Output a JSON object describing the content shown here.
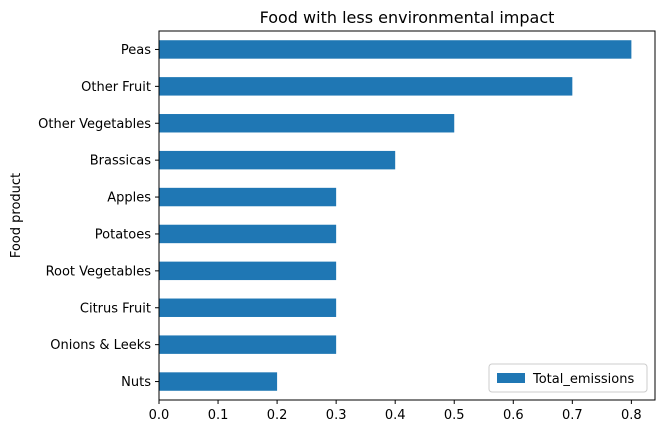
{
  "chart_data": {
    "type": "bar",
    "orientation": "horizontal",
    "title": "Food with less environmental impact",
    "xlabel": "",
    "ylabel": "Food product",
    "categories": [
      "Peas",
      "Other Fruit",
      "Other Vegetables",
      "Brassicas",
      "Apples",
      "Potatoes",
      "Root Vegetables",
      "Citrus Fruit",
      "Onions & Leeks",
      "Nuts"
    ],
    "series": [
      {
        "name": "Total_emissions",
        "values": [
          0.8,
          0.7,
          0.5,
          0.4,
          0.3,
          0.3,
          0.3,
          0.3,
          0.3,
          0.2
        ],
        "color": "#1f77b4"
      }
    ],
    "xlim": [
      0,
      0.84
    ],
    "xticks": [
      "0.0",
      "0.1",
      "0.2",
      "0.3",
      "0.4",
      "0.5",
      "0.6",
      "0.7",
      "0.8"
    ],
    "grid": false,
    "legend_position": "bottom-right"
  }
}
